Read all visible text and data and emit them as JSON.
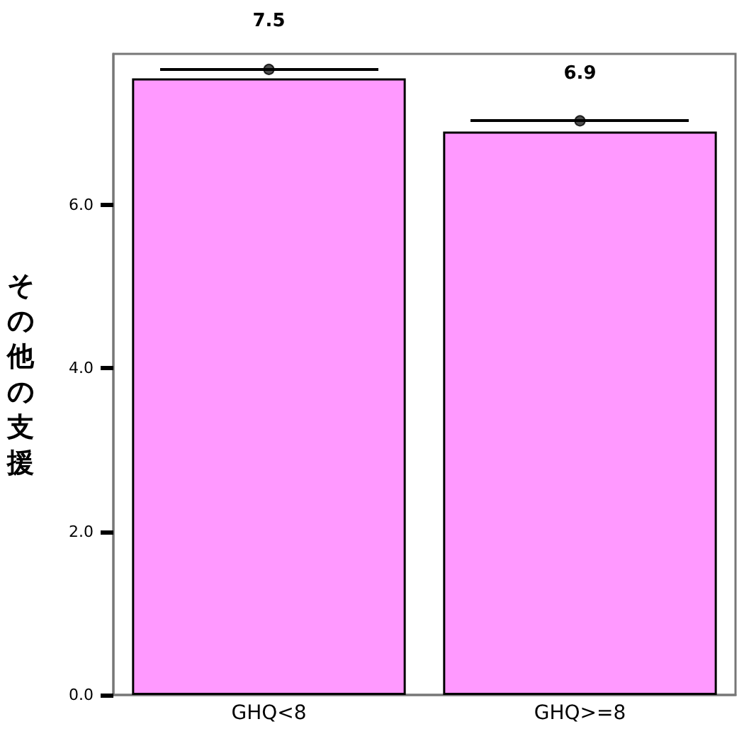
{
  "chart_data": {
    "type": "bar",
    "ylabel": "その他の支援",
    "categories": [
      "GHQ<8",
      "GHQ>=8"
    ],
    "values": [
      7.55,
      6.9
    ],
    "color": "#ff99ff",
    "series": [
      {
        "type": "scatter",
        "x": [
          "GHQ<8",
          "GHQ>=8"
        ],
        "values": [
          7.66,
          7.03
        ],
        "color": "#222222",
        "marker": "circle"
      }
    ],
    "value_labels": [
      "7.5",
      "6.9"
    ],
    "ylim": [
      0,
      7.85
    ],
    "yticks": [
      {
        "value": 0,
        "label": "0.0"
      },
      {
        "value": 2,
        "label": "2.0"
      },
      {
        "value": 4,
        "label": "4.0"
      },
      {
        "value": 6,
        "label": "6.0"
      }
    ],
    "grid": false
  }
}
